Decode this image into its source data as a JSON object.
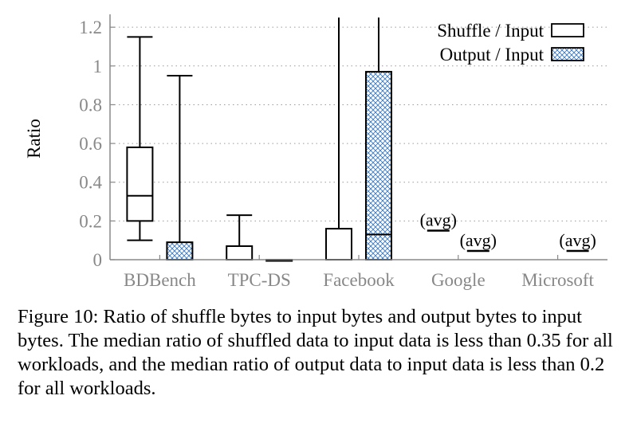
{
  "chart_data": {
    "type": "box",
    "categories": [
      "BDBench",
      "TPC-DS",
      "Facebook",
      "Google",
      "Microsoft"
    ],
    "ylabel": "Ratio",
    "ylim": [
      0,
      1.25
    ],
    "yticks": [
      0,
      0.2,
      0.4,
      0.6,
      0.8,
      1,
      1.2
    ],
    "yticklabels": [
      "0",
      "0.2",
      "0.4",
      "0.6",
      "0.8",
      "1",
      "1.2"
    ],
    "grid": "horizontal dotted",
    "legend_position": "top-right",
    "series": [
      {
        "name": "Shuffle / Input",
        "fill": "none",
        "boxes": [
          {
            "category": "BDBench",
            "whisker_low": 0.1,
            "q1": 0.2,
            "median": 0.33,
            "q3": 0.58,
            "whisker_high": 1.15
          },
          {
            "category": "TPC-DS",
            "whisker_low": 0.0,
            "q1": 0.0,
            "median": 0.0,
            "q3": 0.07,
            "whisker_high": 0.23
          },
          {
            "category": "Facebook",
            "whisker_low": 0.0,
            "q1": 0.0,
            "median": 0.0,
            "q3": 0.16,
            "whisker_high": 1.25
          }
        ],
        "averages": [
          {
            "category": "Google",
            "value": 0.15,
            "label": "(avg)"
          }
        ]
      },
      {
        "name": "Output / Input",
        "fill": "crosshatch",
        "boxes": [
          {
            "category": "BDBench",
            "whisker_low": 0.0,
            "q1": 0.0,
            "median": 0.0,
            "q3": 0.09,
            "whisker_high": 0.95
          },
          {
            "category": "TPC-DS",
            "whisker_low": 0.0,
            "q1": 0.0,
            "median": 0.0,
            "q3": 0.0,
            "whisker_high": 0.0
          },
          {
            "category": "Facebook",
            "whisker_low": 0.0,
            "q1": 0.0,
            "median": 0.13,
            "q3": 0.97,
            "whisker_high": 1.25
          }
        ],
        "averages": [
          {
            "category": "Google",
            "value": 0.045,
            "label": "(avg)"
          },
          {
            "category": "Microsoft",
            "value": 0.045,
            "label": "(avg)"
          }
        ]
      }
    ]
  },
  "caption": "Figure 10: Ratio of shuffle bytes to input bytes and output bytes to input bytes. The median ratio of shuffled data to input data is less than 0.35 for all workloads, and the median ratio of output data to input data is less than 0.2 for all workloads.",
  "colors": {
    "hatch": "#3a78c2",
    "axis": "#888888",
    "tick_text": "#888888",
    "grid": "#9a9a9a"
  }
}
